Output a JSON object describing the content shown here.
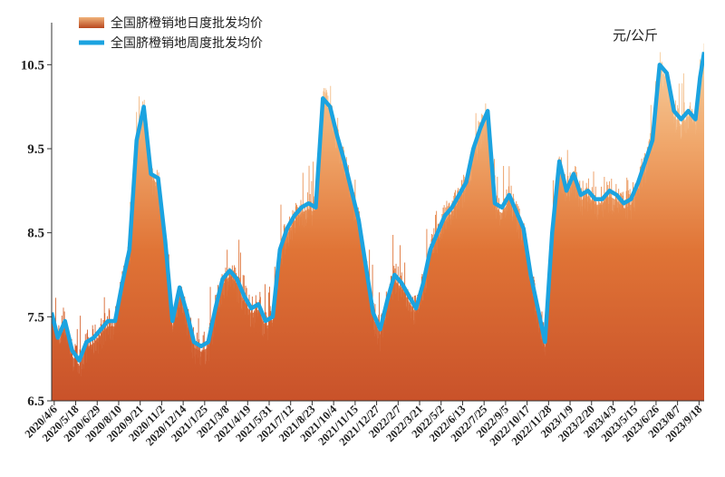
{
  "chart_data": {
    "type": "area",
    "unit": "元/公斤",
    "ylim": [
      6.5,
      11.0
    ],
    "y_ticks": [
      "6.5",
      "7.5",
      "8.5",
      "9.5",
      "10.5"
    ],
    "y_tick_values": [
      6.5,
      7.5,
      8.5,
      9.5,
      10.5
    ],
    "x_tick_labels": [
      "2020/4/6",
      "2020/5/18",
      "2020/6/29",
      "2020/8/10",
      "2020/9/21",
      "2020/11/2",
      "2020/12/14",
      "2021/1/25",
      "2021/3/8",
      "2021/4/19",
      "2021/5/31",
      "2021/7/12",
      "2021/8/23",
      "2021/10/4",
      "2021/11/15",
      "2021/12/27",
      "2022/2/7",
      "2022/3/21",
      "2022/5/2",
      "2022/6/13",
      "2022/7/25",
      "2022/9/5",
      "2022/10/17",
      "2022/11/28",
      "2023/1/9",
      "2023/2/20",
      "2023/4/3",
      "2023/5/15",
      "2023/6/26",
      "2023/8/7",
      "2023/9/18"
    ],
    "legend": [
      {
        "name": "全国脐橙销地日度批发均价",
        "color": "#d2622a"
      },
      {
        "name": "全国脐橙销地周度批发均价",
        "color": "#1ba3e0"
      }
    ],
    "legend_position": "top-left",
    "grid": false,
    "series": [
      {
        "name": "全国脐橙销地周度批发均价",
        "kind": "line",
        "color": "#1ba3e0",
        "points": [
          [
            "2020/4/1",
            7.55
          ],
          [
            "2020/4/13",
            7.25
          ],
          [
            "2020/4/27",
            7.45
          ],
          [
            "2020/5/11",
            7.1
          ],
          [
            "2020/5/25",
            6.98
          ],
          [
            "2020/6/8",
            7.2
          ],
          [
            "2020/6/22",
            7.25
          ],
          [
            "2020/7/6",
            7.35
          ],
          [
            "2020/7/20",
            7.45
          ],
          [
            "2020/8/3",
            7.45
          ],
          [
            "2020/8/17",
            7.9
          ],
          [
            "2020/8/31",
            8.3
          ],
          [
            "2020/9/14",
            9.6
          ],
          [
            "2020/9/28",
            10.0
          ],
          [
            "2020/10/12",
            9.2
          ],
          [
            "2020/10/26",
            9.15
          ],
          [
            "2020/11/9",
            8.4
          ],
          [
            "2020/11/23",
            7.45
          ],
          [
            "2020/12/7",
            7.85
          ],
          [
            "2020/12/21",
            7.55
          ],
          [
            "2021/1/4",
            7.2
          ],
          [
            "2021/1/18",
            7.15
          ],
          [
            "2021/2/1",
            7.2
          ],
          [
            "2021/2/15",
            7.6
          ],
          [
            "2021/3/1",
            7.95
          ],
          [
            "2021/3/15",
            8.05
          ],
          [
            "2021/3/29",
            7.95
          ],
          [
            "2021/4/12",
            7.75
          ],
          [
            "2021/4/26",
            7.6
          ],
          [
            "2021/5/10",
            7.65
          ],
          [
            "2021/5/24",
            7.45
          ],
          [
            "2021/6/7",
            7.5
          ],
          [
            "2021/6/21",
            8.3
          ],
          [
            "2021/7/5",
            8.55
          ],
          [
            "2021/7/19",
            8.7
          ],
          [
            "2021/8/2",
            8.8
          ],
          [
            "2021/8/16",
            8.85
          ],
          [
            "2021/8/30",
            8.8
          ],
          [
            "2021/9/13",
            10.1
          ],
          [
            "2021/9/27",
            10.0
          ],
          [
            "2021/10/11",
            9.65
          ],
          [
            "2021/10/25",
            9.35
          ],
          [
            "2021/11/8",
            9.0
          ],
          [
            "2021/11/22",
            8.65
          ],
          [
            "2021/12/6",
            8.1
          ],
          [
            "2021/12/20",
            7.55
          ],
          [
            "2022/1/3",
            7.35
          ],
          [
            "2022/1/17",
            7.7
          ],
          [
            "2022/1/31",
            8.0
          ],
          [
            "2022/2/14",
            7.9
          ],
          [
            "2022/2/28",
            7.75
          ],
          [
            "2022/3/14",
            7.6
          ],
          [
            "2022/3/28",
            7.9
          ],
          [
            "2022/4/11",
            8.3
          ],
          [
            "2022/4/25",
            8.5
          ],
          [
            "2022/5/9",
            8.7
          ],
          [
            "2022/5/23",
            8.8
          ],
          [
            "2022/6/6",
            8.95
          ],
          [
            "2022/6/20",
            9.1
          ],
          [
            "2022/7/4",
            9.5
          ],
          [
            "2022/7/18",
            9.75
          ],
          [
            "2022/8/1",
            9.95
          ],
          [
            "2022/8/15",
            8.85
          ],
          [
            "2022/8/29",
            8.8
          ],
          [
            "2022/9/12",
            8.95
          ],
          [
            "2022/9/26",
            8.75
          ],
          [
            "2022/10/10",
            8.55
          ],
          [
            "2022/10/24",
            8.0
          ],
          [
            "2022/11/7",
            7.6
          ],
          [
            "2022/11/21",
            7.2
          ],
          [
            "2022/12/5",
            8.5
          ],
          [
            "2022/12/19",
            9.35
          ],
          [
            "2023/1/2",
            9.0
          ],
          [
            "2023/1/16",
            9.2
          ],
          [
            "2023/1/30",
            8.95
          ],
          [
            "2023/2/13",
            9.0
          ],
          [
            "2023/2/27",
            8.9
          ],
          [
            "2023/3/13",
            8.9
          ],
          [
            "2023/3/27",
            9.0
          ],
          [
            "2023/4/10",
            8.95
          ],
          [
            "2023/4/24",
            8.85
          ],
          [
            "2023/5/8",
            8.9
          ],
          [
            "2023/5/22",
            9.1
          ],
          [
            "2023/6/5",
            9.35
          ],
          [
            "2023/6/19",
            9.6
          ],
          [
            "2023/7/3",
            10.5
          ],
          [
            "2023/7/17",
            10.4
          ],
          [
            "2023/7/31",
            9.95
          ],
          [
            "2023/8/14",
            9.85
          ],
          [
            "2023/8/28",
            9.95
          ],
          [
            "2023/9/11",
            9.85
          ],
          [
            "2023/9/20",
            10.35
          ],
          [
            "2023/9/28",
            10.65
          ]
        ]
      }
    ]
  }
}
